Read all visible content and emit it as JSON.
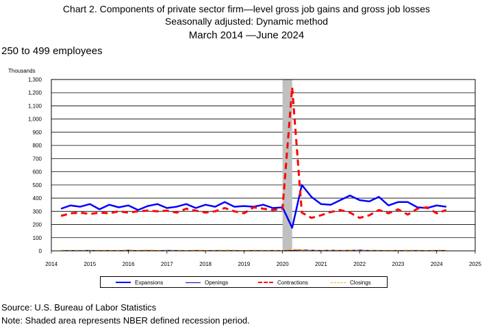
{
  "header": {
    "line1": "Chart 2. Components of private sector firm—level gross job gains and gross job losses",
    "line2": "Seasonally adjusted: Dynamic method",
    "line3": "March 2014 —June 2024"
  },
  "subtitle": "250 to 499 employees",
  "footer": {
    "source": "Source: U.S. Bureau of Labor Statistics",
    "note": "Note: Shaded area represents NBER defined recession period."
  },
  "chart_data": {
    "type": "line",
    "ylabel": "Thousands",
    "ylim": [
      0,
      1300
    ],
    "yticks": [
      "0",
      "100",
      "200",
      "300",
      "400",
      "500",
      "600",
      "700",
      "800",
      "900",
      "1,000",
      "1,100",
      "1,200",
      "1,300"
    ],
    "xlim": [
      2014,
      2025
    ],
    "xticks": [
      "2014",
      "2015",
      "2016",
      "2017",
      "2018",
      "2019",
      "2020",
      "2021",
      "2022",
      "2023",
      "2024",
      "2025"
    ],
    "recession": [
      2020.0,
      2020.25
    ],
    "grid": true,
    "legend_position": "bottom",
    "series": [
      {
        "name": "Expansions",
        "color": "#0000ff",
        "style": "solid-thick",
        "x": [
          2014.25,
          2014.5,
          2014.75,
          2015.0,
          2015.25,
          2015.5,
          2015.75,
          2016.0,
          2016.25,
          2016.5,
          2016.75,
          2017.0,
          2017.25,
          2017.5,
          2017.75,
          2018.0,
          2018.25,
          2018.5,
          2018.75,
          2019.0,
          2019.25,
          2019.5,
          2019.75,
          2020.0,
          2020.25,
          2020.5,
          2020.75,
          2021.0,
          2021.25,
          2021.5,
          2021.75,
          2022.0,
          2022.25,
          2022.5,
          2022.75,
          2023.0,
          2023.25,
          2023.5,
          2023.75,
          2024.0,
          2024.25
        ],
        "y": [
          320,
          345,
          335,
          355,
          315,
          350,
          330,
          345,
          310,
          340,
          355,
          325,
          335,
          355,
          325,
          350,
          335,
          370,
          335,
          340,
          335,
          350,
          325,
          330,
          175,
          500,
          410,
          355,
          350,
          385,
          420,
          385,
          375,
          410,
          345,
          370,
          370,
          330,
          325,
          345,
          335
        ]
      },
      {
        "name": "Openings",
        "color": "#0000aa",
        "style": "solid-thin",
        "x": [
          2014.25,
          2014.5,
          2014.75,
          2015.0,
          2015.25,
          2015.5,
          2015.75,
          2016.0,
          2016.25,
          2016.5,
          2016.75,
          2017.0,
          2017.25,
          2017.5,
          2017.75,
          2018.0,
          2018.25,
          2018.5,
          2018.75,
          2019.0,
          2019.25,
          2019.5,
          2019.75,
          2020.0,
          2020.25,
          2020.5,
          2020.75,
          2021.0,
          2021.25,
          2021.5,
          2021.75,
          2022.0,
          2022.25,
          2022.5,
          2022.75,
          2023.0,
          2023.25,
          2023.5,
          2023.75,
          2024.0,
          2024.25
        ],
        "y": [
          2,
          3,
          2,
          4,
          2,
          3,
          2,
          5,
          2,
          3,
          2,
          4,
          3,
          2,
          3,
          2,
          3,
          2,
          3,
          2,
          3,
          2,
          3,
          2,
          3,
          8,
          5,
          3,
          5,
          3,
          4,
          6,
          3,
          3,
          2,
          3,
          2,
          3,
          2,
          3,
          3
        ]
      },
      {
        "name": "Contractions",
        "color": "#ff0000",
        "style": "dashed-thick",
        "x": [
          2014.25,
          2014.5,
          2014.75,
          2015.0,
          2015.25,
          2015.5,
          2015.75,
          2016.0,
          2016.25,
          2016.5,
          2016.75,
          2017.0,
          2017.25,
          2017.5,
          2017.75,
          2018.0,
          2018.25,
          2018.5,
          2018.75,
          2019.0,
          2019.25,
          2019.5,
          2019.75,
          2020.0,
          2020.25,
          2020.5,
          2020.75,
          2021.0,
          2021.25,
          2021.5,
          2021.75,
          2022.0,
          2022.25,
          2022.5,
          2022.75,
          2023.0,
          2023.25,
          2023.5,
          2023.75,
          2024.0,
          2024.25
        ],
        "y": [
          265,
          285,
          290,
          280,
          290,
          285,
          300,
          290,
          300,
          305,
          300,
          305,
          290,
          320,
          305,
          290,
          300,
          325,
          300,
          285,
          330,
          320,
          310,
          320,
          1240,
          290,
          250,
          270,
          295,
          310,
          290,
          250,
          270,
          310,
          285,
          315,
          275,
          320,
          330,
          285,
          310
        ]
      },
      {
        "name": "Closings",
        "color": "#ffa500",
        "style": "dashed-thin",
        "x": [
          2014.25,
          2014.5,
          2014.75,
          2015.0,
          2015.25,
          2015.5,
          2015.75,
          2016.0,
          2016.25,
          2016.5,
          2016.75,
          2017.0,
          2017.25,
          2017.5,
          2017.75,
          2018.0,
          2018.25,
          2018.5,
          2018.75,
          2019.0,
          2019.25,
          2019.5,
          2019.75,
          2020.0,
          2020.25,
          2020.5,
          2020.75,
          2021.0,
          2021.25,
          2021.5,
          2021.75,
          2022.0,
          2022.25,
          2022.5,
          2022.75,
          2023.0,
          2023.25,
          2023.5,
          2023.75,
          2024.0,
          2024.25
        ],
        "y": [
          3,
          2,
          3,
          2,
          4,
          2,
          3,
          5,
          3,
          6,
          3,
          2,
          3,
          2,
          4,
          3,
          2,
          5,
          3,
          2,
          4,
          3,
          2,
          3,
          12,
          6,
          4,
          3,
          4,
          2,
          5,
          3,
          4,
          2,
          3,
          2,
          4,
          3,
          2,
          4,
          3
        ]
      }
    ]
  }
}
